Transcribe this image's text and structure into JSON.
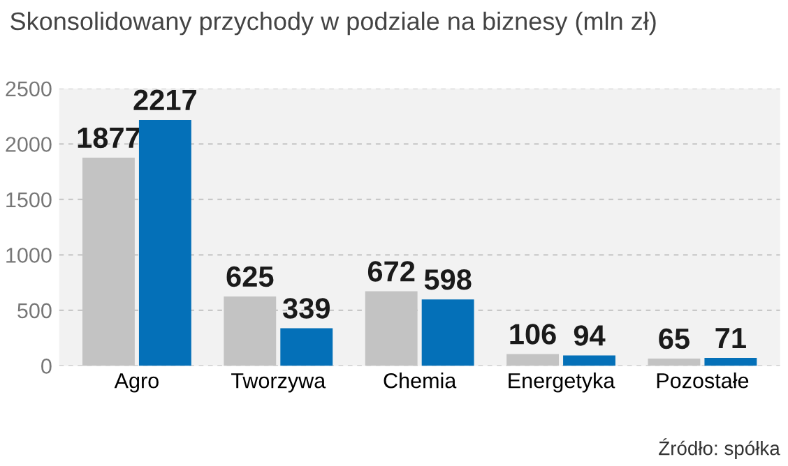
{
  "chart_data": {
    "type": "bar",
    "title": "Skonsolidowany przychody w podziale na biznesy (mln zł)",
    "categories": [
      "Agro",
      "Tworzywa",
      "Chemia",
      "Energetyka",
      "Pozostałe"
    ],
    "series": [
      {
        "color": "#c3c3c3",
        "values": [
          1877,
          625,
          672,
          106,
          65
        ]
      },
      {
        "color": "#0470b8",
        "values": [
          2217,
          339,
          598,
          94,
          71
        ]
      }
    ],
    "ylim": [
      0,
      2500
    ],
    "yticks": [
      0,
      500,
      1000,
      1500,
      2000,
      2500
    ],
    "grid": "y",
    "data_labels": true,
    "annotations": [
      "Źródło: spółka"
    ]
  }
}
